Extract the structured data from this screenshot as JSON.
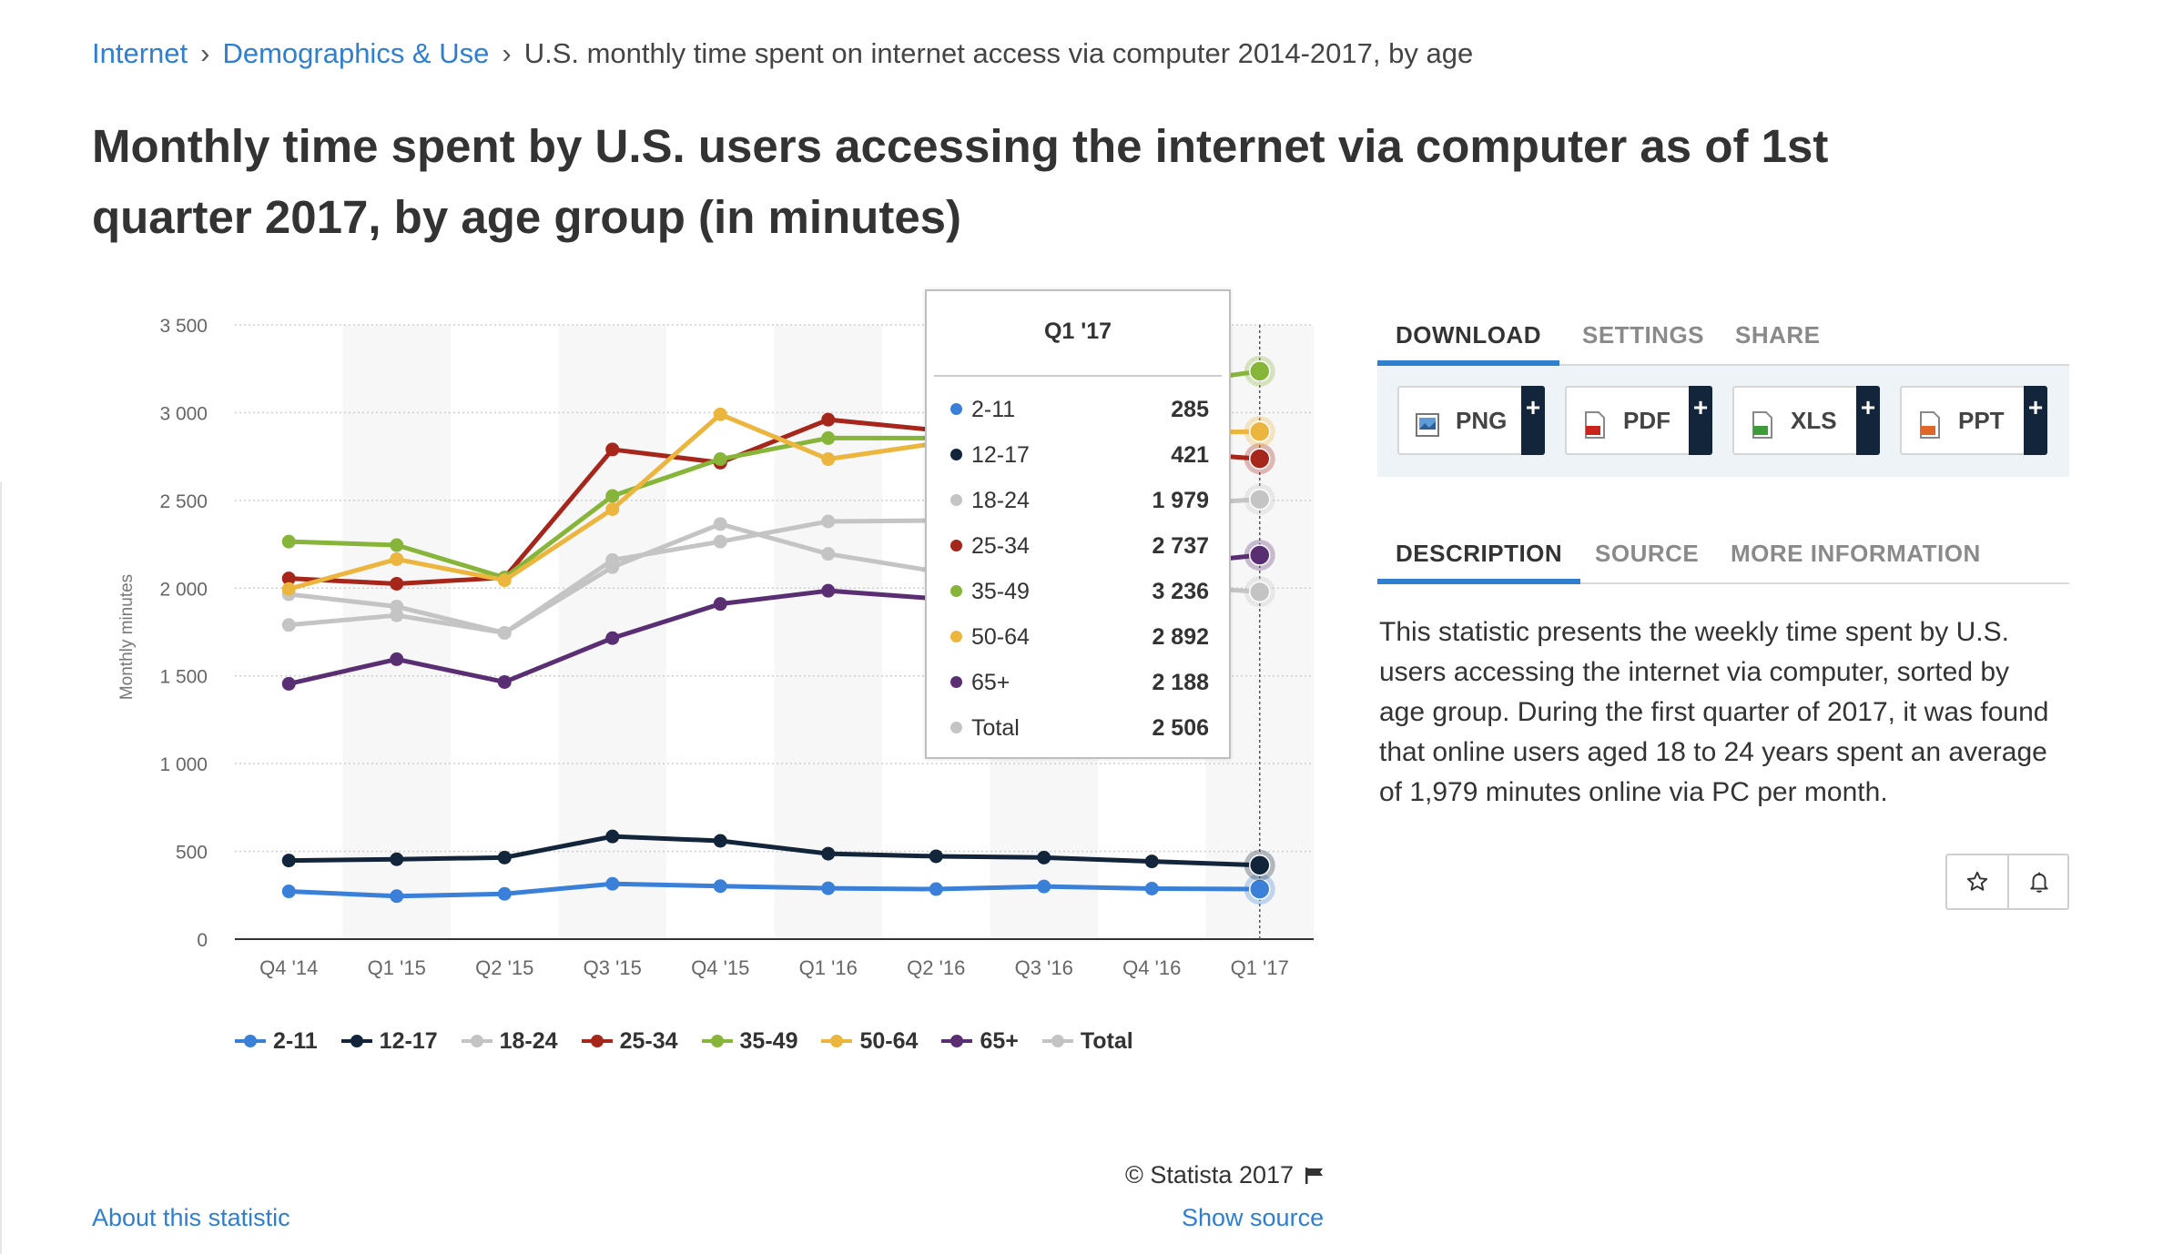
{
  "breadcrumb": {
    "items": [
      "Internet",
      "Demographics & Use"
    ],
    "current": "U.S. monthly time spent on internet access via computer 2014-2017, by age",
    "separator": "›"
  },
  "title": "Monthly time spent by U.S. users accessing the internet via computer as of 1st quarter 2017, by age group (in minutes)",
  "chart_data": {
    "type": "line",
    "title": "",
    "xlabel": "",
    "ylabel": "Monthly minutes",
    "categories": [
      "Q4 '14",
      "Q1 '15",
      "Q2 '15",
      "Q3 '15",
      "Q4 '15",
      "Q1 '16",
      "Q2 '16",
      "Q3 '16",
      "Q4 '16",
      "Q1 '17"
    ],
    "ylim": [
      0,
      3500
    ],
    "yticks": [
      0,
      500,
      1000,
      1500,
      2000,
      2500,
      3000,
      3500
    ],
    "ytick_labels": [
      "0",
      "500",
      "1 000",
      "1 500",
      "2 000",
      "2 500",
      "3 000",
      "3 500"
    ],
    "grid": "horizontal dotted, alternating shaded category bands",
    "legend_position": "bottom",
    "series": [
      {
        "name": "2-11",
        "color": "#3a80d9",
        "values": [
          272,
          245,
          258,
          315,
          302,
          290,
          285,
          300,
          288,
          285
        ]
      },
      {
        "name": "12-17",
        "color": "#13253a",
        "values": [
          448,
          455,
          465,
          585,
          560,
          487,
          472,
          465,
          443,
          421
        ]
      },
      {
        "name": "18-24",
        "color": "#c4c4c4",
        "values": [
          1965,
          1895,
          1745,
          2120,
          2365,
          2195,
          2095,
          2065,
          2020,
          1979
        ]
      },
      {
        "name": "25-34",
        "color": "#a6261c",
        "values": [
          2055,
          2025,
          2060,
          2790,
          2715,
          2960,
          2900,
          2850,
          2780,
          2737
        ]
      },
      {
        "name": "35-49",
        "color": "#86b53a",
        "values": [
          2265,
          2245,
          2060,
          2525,
          2735,
          2855,
          2855,
          3020,
          3150,
          3236
        ]
      },
      {
        "name": "50-64",
        "color": "#ebb53e",
        "values": [
          1995,
          2165,
          2045,
          2450,
          2990,
          2735,
          2825,
          2840,
          2885,
          2892
        ]
      },
      {
        "name": "65+",
        "color": "#5a2e73",
        "values": [
          1455,
          1595,
          1465,
          1715,
          1910,
          1985,
          1940,
          2060,
          2125,
          2188
        ]
      },
      {
        "name": "Total",
        "color": "#c4c4c4",
        "values": [
          1790,
          1845,
          1745,
          2160,
          2265,
          2380,
          2385,
          2430,
          2470,
          2506
        ]
      }
    ]
  },
  "tooltip": {
    "header": "Q1 '17",
    "rows": [
      {
        "label": "2-11",
        "value": "285",
        "color": "#3a80d9"
      },
      {
        "label": "12-17",
        "value": "421",
        "color": "#13253a"
      },
      {
        "label": "18-24",
        "value": "1 979",
        "color": "#c4c4c4"
      },
      {
        "label": "25-34",
        "value": "2 737",
        "color": "#a6261c"
      },
      {
        "label": "35-49",
        "value": "3 236",
        "color": "#86b53a"
      },
      {
        "label": "50-64",
        "value": "2 892",
        "color": "#ebb53e"
      },
      {
        "label": "65+",
        "value": "2 188",
        "color": "#5a2e73"
      },
      {
        "label": "Total",
        "value": "2 506",
        "color": "#c4c4c4"
      }
    ]
  },
  "credit": "© Statista 2017",
  "links": {
    "about": "About this statistic",
    "source": "Show source"
  },
  "panel": {
    "top_tabs": [
      "DOWNLOAD",
      "SETTINGS",
      "SHARE"
    ],
    "downloads": [
      {
        "label": "PNG",
        "icon": "png-file-icon"
      },
      {
        "label": "PDF",
        "icon": "pdf-file-icon"
      },
      {
        "label": "XLS",
        "icon": "xls-file-icon"
      },
      {
        "label": "PPT",
        "icon": "ppt-file-icon"
      }
    ],
    "plus": "+",
    "info_tabs": [
      "DESCRIPTION",
      "SOURCE",
      "MORE INFORMATION"
    ],
    "description": "This statistic presents the weekly time spent by U.S. users accessing the internet via computer, sorted by age group. During the first quarter of 2017, it was found that online users aged 18 to 24 years spent an average of 1,979 minutes online via PC per month.",
    "icons": [
      "star-icon",
      "bell-icon"
    ]
  },
  "colors": {
    "accent": "#2f7fd1",
    "dark": "#13253a"
  }
}
